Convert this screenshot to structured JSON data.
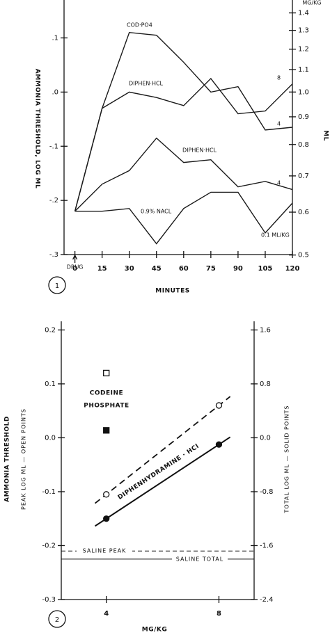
{
  "chart_data": [
    {
      "type": "line",
      "x": [
        0,
        15,
        30,
        45,
        60,
        75,
        90,
        105,
        120
      ],
      "xlim": [
        -6,
        120
      ],
      "xticks": [
        0,
        15,
        30,
        45,
        60,
        75,
        90,
        105,
        120
      ],
      "xlabel": "MINUTES",
      "ylabel": "AMMONIA THRESHOLD, LOG ML",
      "ylim": [
        -0.3,
        0.17
      ],
      "yticks": [
        {
          "value": 0.1,
          "label": ".1"
        },
        {
          "value": 0,
          "label": ".0"
        },
        {
          "value": -0.1,
          "label": "-.1"
        },
        {
          "value": -0.2,
          "label": "-.2"
        },
        {
          "value": -0.3,
          "label": "-.3"
        }
      ],
      "y2label": "ML",
      "y2units": "MG/KG",
      "y2scale": "log",
      "y2lim": [
        0.501,
        1.479
      ],
      "y2ticks": [
        1.4,
        1.3,
        1.2,
        1.1,
        {
          "value": 1,
          "label": "1.0"
        },
        0.9,
        0.8,
        0.7,
        0.6,
        0.5
      ],
      "series": [
        {
          "name": "COD·PO4",
          "dose_label": "4",
          "color": "#1a1a1a",
          "values": [
            -0.22,
            -0.03,
            0.11,
            0.105,
            0.055,
            0.0,
            0.01,
            -0.07,
            -0.065
          ]
        },
        {
          "name": "DIPHEN·HCL",
          "dose_label": "8",
          "color": "#1a1a1a",
          "values": [
            -0.22,
            -0.03,
            0.0,
            -0.01,
            -0.025,
            0.025,
            -0.04,
            -0.035,
            0.015
          ]
        },
        {
          "name": "DIPHEN·HCL",
          "dose_label": "4",
          "color": "#1a1a1a",
          "values": [
            -0.22,
            -0.17,
            -0.145,
            -0.085,
            -0.13,
            -0.125,
            -0.175,
            -0.165,
            -0.18
          ]
        },
        {
          "name": "0.9% NACL",
          "dose_label": "0.1 ML/KG",
          "color": "#1a1a1a",
          "values": [
            -0.22,
            -0.22,
            -0.215,
            -0.28,
            -0.215,
            -0.185,
            -0.185,
            -0.26,
            -0.205
          ]
        }
      ],
      "annotation": "DRUG",
      "panel": "1"
    },
    {
      "type": "scatter",
      "xlabel": "MG/KG",
      "xlim": [
        2.4,
        9.25
      ],
      "xticks": [
        4,
        8
      ],
      "ylabel": "AMMONIA THRESHOLD",
      "ylabel_sub": "PEAK LOG ML — OPEN POINTS",
      "ylim": [
        -0.3,
        0.216
      ],
      "yticks": [
        0.2,
        0.1,
        {
          "value": 0,
          "label": "0.0"
        },
        -0.1,
        -0.2,
        -0.3
      ],
      "y2label": "TOTAL LOG ML — SOLID POINTS",
      "y2lim": [
        -2.4,
        1.728
      ],
      "y2ticks": [
        1.6,
        0.8,
        {
          "value": 0,
          "label": "0.0"
        },
        -0.8,
        -1.6,
        -2.4
      ],
      "series": [
        {
          "marker": "open-square",
          "x": [
            4
          ],
          "values": [
            0.12
          ]
        },
        {
          "marker": "solid-square",
          "axis": "y2",
          "x": [
            4
          ],
          "values": [
            0.11
          ]
        },
        {
          "marker": "open-circle",
          "line": "dashed",
          "x": [
            4,
            8
          ],
          "values": [
            -0.105,
            0.06
          ]
        },
        {
          "marker": "solid-circle",
          "line": "solid",
          "axis": "y2",
          "x": [
            4,
            8
          ],
          "values": [
            -1.2,
            -0.1
          ]
        }
      ],
      "reference_lines": [
        {
          "label": "SALINE PEAK",
          "value": -0.21,
          "style": "dashed"
        },
        {
          "label": "SALINE TOTAL",
          "value": -1.8,
          "axis": "y2",
          "style": "solid"
        }
      ],
      "compound_label": [
        "CODEINE",
        "PHOSPHATE"
      ],
      "line_label": "DIPHENHYDRAMINE · HCl",
      "panel": "2"
    }
  ]
}
